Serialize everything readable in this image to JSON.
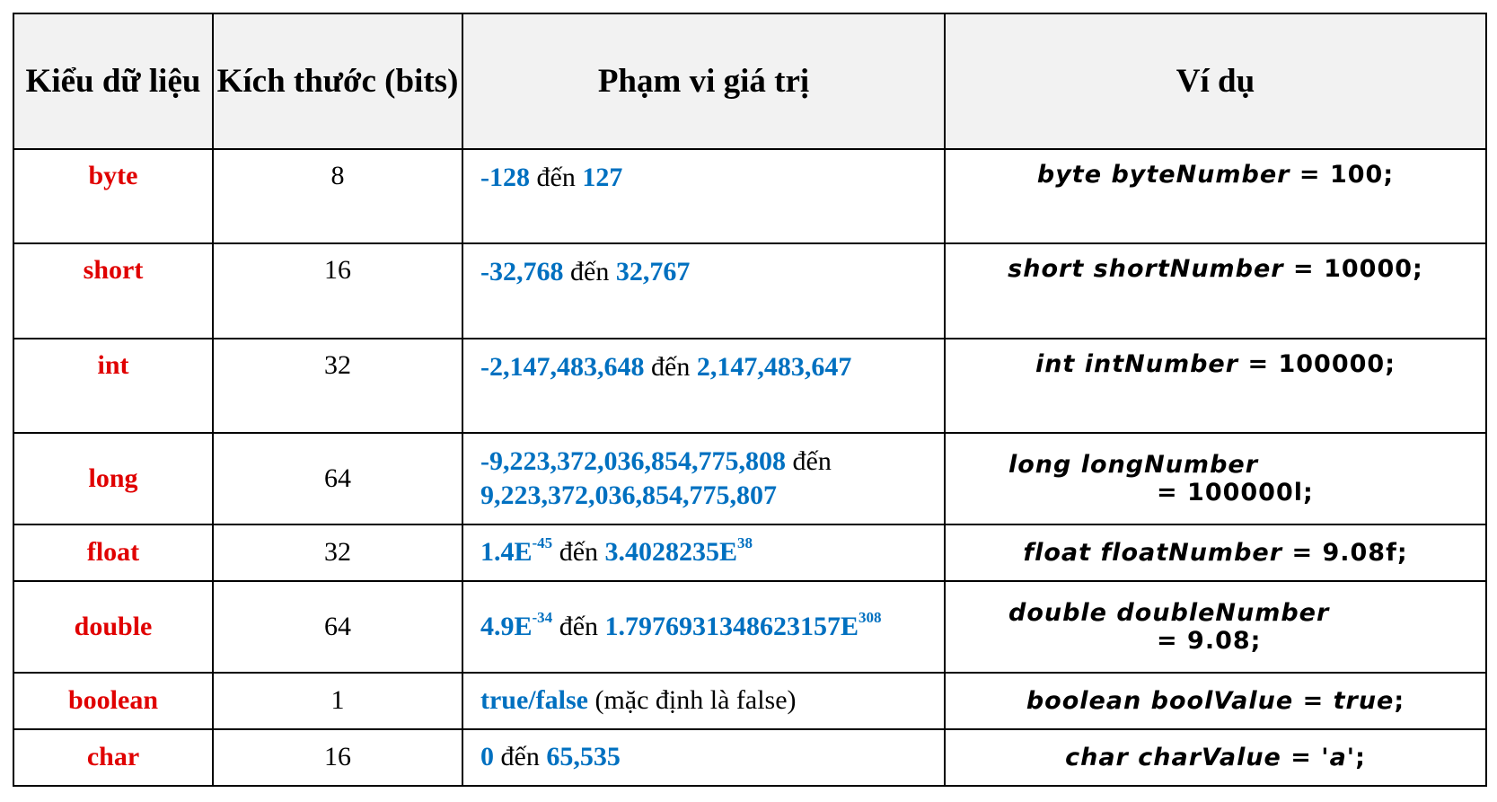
{
  "headers": {
    "type": "Kiểu dữ liệu",
    "size": "Kích thước (bits)",
    "range": "Phạm vi giá trị",
    "example": "Ví dụ"
  },
  "connector": "đến",
  "rows": [
    {
      "type": "byte",
      "size": "8",
      "min": "-128",
      "max": "127",
      "ex_type": "byte",
      "ex_name": "byteNumber",
      "ex_eq": "=",
      "ex_val": "100",
      "ex_semi": ";"
    },
    {
      "type": "short",
      "size": "16",
      "min": "-32,768",
      "max": "32,767",
      "ex_type": "short",
      "ex_name": "shortNumber",
      "ex_eq": "=",
      "ex_val": "10000",
      "ex_semi": ";"
    },
    {
      "type": "int",
      "size": "32",
      "min": "-2,147,483,648",
      "max": "2,147,483,647",
      "ex_type": "int",
      "ex_name": "intNumber",
      "ex_eq": "=",
      "ex_val": "100000",
      "ex_semi": ";"
    },
    {
      "type": "long",
      "size": "64",
      "min": "-9,223,372,036,854,775,808",
      "max": "9,223,372,036,854,775,807",
      "ex_type": "long",
      "ex_name": "longNumber",
      "ex_eq": "=",
      "ex_val": "100000l",
      "ex_semi": ";"
    },
    {
      "type": "float",
      "size": "32",
      "min": "1.4E",
      "min_exp": "-45",
      "max": "3.4028235E",
      "max_exp": "38",
      "ex_type": "float",
      "ex_name": "floatNumber",
      "ex_eq": "=",
      "ex_val": "9.08f",
      "ex_semi": ";"
    },
    {
      "type": "double",
      "size": "64",
      "min": "4.9E",
      "min_exp": "-34",
      "max": "1.7976931348623157E",
      "max_exp": "308",
      "ex_type": "double",
      "ex_name": "doubleNumber",
      "ex_eq": "=",
      "ex_val": "9.08",
      "ex_semi": ";"
    },
    {
      "type": "boolean",
      "size": "1",
      "value": "true/false",
      "note": "(mặc định là false)",
      "ex_type": "boolean",
      "ex_name": "boolValue",
      "ex_eq": "=",
      "ex_val": "true",
      "ex_semi": ";"
    },
    {
      "type": "char",
      "size": "16",
      "min": "0",
      "max": "65,535",
      "ex_type": "char",
      "ex_name": "charValue",
      "ex_eq": "=",
      "ex_val": "'a'",
      "ex_semi": ";"
    }
  ],
  "colors": {
    "type_red": "#e00000",
    "value_blue": "#0070c0",
    "header_bg": "#f2f2f2"
  }
}
